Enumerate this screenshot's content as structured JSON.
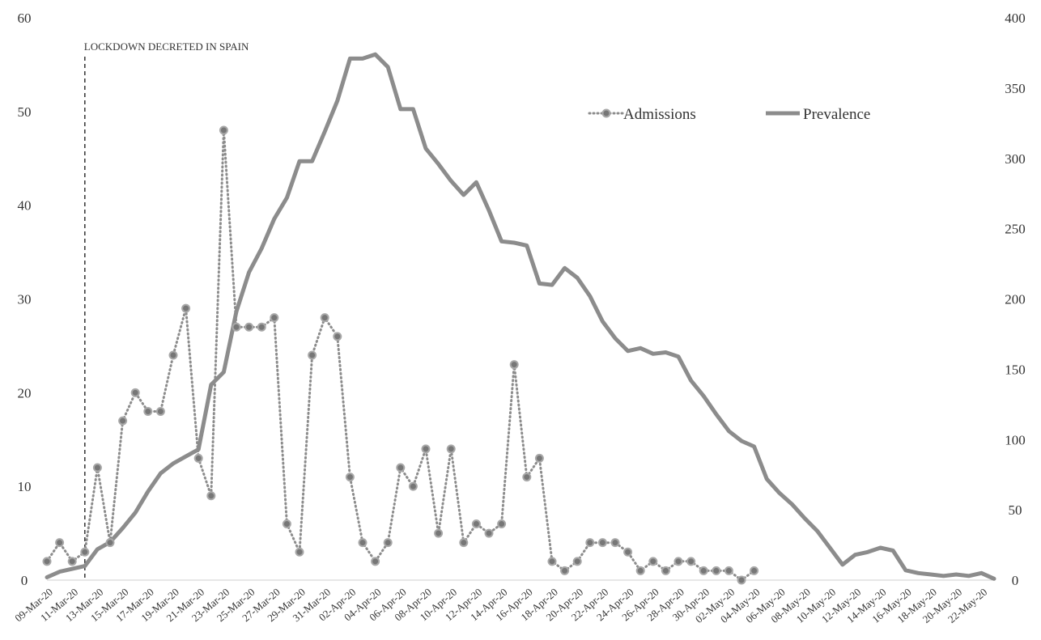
{
  "chart_data": {
    "type": "line",
    "title": "",
    "xlabel": "",
    "ylabel": "",
    "y2label": "",
    "ylim": [
      0,
      60
    ],
    "y2lim": [
      0,
      400
    ],
    "yticks": [
      "0",
      "10",
      "20",
      "30",
      "40",
      "50",
      "60"
    ],
    "y2ticks": [
      "0",
      "50",
      "100",
      "150",
      "200",
      "250",
      "300",
      "350",
      "400"
    ],
    "grid": false,
    "legend_position": "top-right",
    "colors": {
      "admissions": "#8c8c8c",
      "prevalence": "#8c8c8c",
      "annotation": "#333333"
    },
    "annotation": {
      "text": "LOCKDOWN DECRETED IN SPAIN",
      "x": "12-Mar-20"
    },
    "xtick_labels": [
      "09-Mar-20",
      "11-Mar-20",
      "13-Mar-20",
      "15-Mar-20",
      "17-Mar-20",
      "19-Mar-20",
      "21-Mar-20",
      "23-Mar-20",
      "25-Mar-20",
      "27-Mar-20",
      "29-Mar-20",
      "31-Mar-20",
      "02-Apr-20",
      "04-Apr-20",
      "06-Apr-20",
      "08-Apr-20",
      "10-Apr-20",
      "12-Apr-20",
      "14-Apr-20",
      "16-Apr-20",
      "18-Apr-20",
      "20-Apr-20",
      "22-Apr-20",
      "24-Apr-20",
      "26-Apr-20",
      "28-Apr-20",
      "30-Apr-20",
      "02-May-20",
      "04-May-20",
      "06-May-20",
      "08-May-20",
      "10-May-20",
      "12-May-20",
      "14-May-20",
      "16-May-20",
      "18-May-20",
      "20-May-20",
      "22-May-20"
    ],
    "start_date": "2020-03-09",
    "series": [
      {
        "name": "Admissions",
        "axis": "left",
        "style": "dotted-markers",
        "values": [
          2,
          4,
          2,
          3,
          12,
          4,
          17,
          20,
          18,
          18,
          24,
          29,
          13,
          9,
          48,
          27,
          27,
          27,
          28,
          6,
          3,
          24,
          28,
          26,
          11,
          4,
          2,
          4,
          12,
          10,
          14,
          5,
          14,
          4,
          6,
          5,
          6,
          23,
          11,
          13,
          2,
          1,
          2,
          4,
          4,
          4,
          3,
          1,
          2,
          1,
          2,
          2,
          1,
          1,
          1,
          0,
          1
        ]
      },
      {
        "name": "Prevalence",
        "axis": "right",
        "style": "solid",
        "values": [
          2,
          6,
          8,
          10,
          22,
          27,
          37,
          48,
          63,
          76,
          83,
          88,
          93,
          139,
          148,
          191,
          219,
          236,
          257,
          272,
          298,
          298,
          319,
          341,
          371,
          371,
          374,
          365,
          335,
          335,
          307,
          296,
          284,
          274,
          283,
          263,
          241,
          240,
          238,
          211,
          210,
          222,
          215,
          202,
          184,
          172,
          163,
          165,
          161,
          162,
          159,
          142,
          131,
          118,
          106,
          99,
          95,
          72,
          62,
          54,
          44,
          35,
          23,
          11,
          18,
          20,
          23,
          21,
          7,
          5,
          4,
          3,
          4,
          3,
          5,
          1
        ]
      }
    ]
  }
}
